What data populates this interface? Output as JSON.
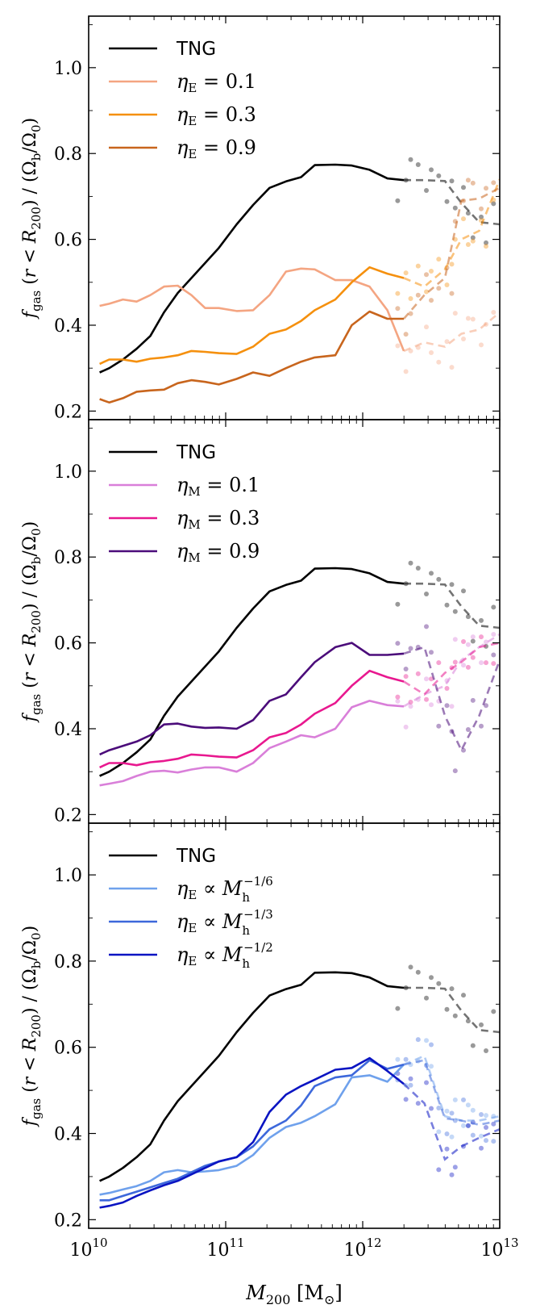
{
  "chart_data": [
    {
      "type": "line",
      "panel": "top",
      "ylabel": "f_gas (r < R_200) / (Ω_b/Ω_0)",
      "xlabel": "",
      "xscale": "log",
      "xlim": [
        10000000000.0,
        10000000000000.0
      ],
      "ylim": [
        0.18,
        1.12
      ],
      "yticks": [
        "0.2",
        "0.4",
        "0.6",
        "0.8",
        "1.0"
      ],
      "legend": [
        {
          "label": "TNG",
          "color": "#000000"
        },
        {
          "label": "η_E = 0.1",
          "color": "#f4a582"
        },
        {
          "label": "η_E = 0.3",
          "color": "#f5900e"
        },
        {
          "label": "η_E = 0.9",
          "color": "#c8651d"
        }
      ],
      "series": [
        {
          "name": "TNG",
          "color": "#000000",
          "x": [
            10.08,
            10.15,
            10.25,
            10.35,
            10.45,
            10.55,
            10.65,
            10.75,
            10.85,
            10.95,
            11.08,
            11.2,
            11.32,
            11.44,
            11.55,
            11.65,
            11.8,
            11.92,
            12.05,
            12.18,
            12.3
          ],
          "y": [
            0.29,
            0.3,
            0.32,
            0.345,
            0.375,
            0.43,
            0.475,
            0.51,
            0.545,
            0.58,
            0.635,
            0.68,
            0.72,
            0.735,
            0.745,
            0.773,
            0.774,
            0.772,
            0.762,
            0.742,
            0.738
          ],
          "dashed_x": [
            12.3,
            12.45,
            12.6,
            12.72,
            12.85,
            13.0
          ],
          "dashed_y": [
            0.738,
            0.738,
            0.736,
            0.685,
            0.64,
            0.635
          ]
        },
        {
          "name": "η_E = 0.1",
          "color": "#f4a582",
          "x": [
            10.08,
            10.15,
            10.25,
            10.35,
            10.45,
            10.55,
            10.65,
            10.75,
            10.85,
            10.95,
            11.08,
            11.2,
            11.32,
            11.44,
            11.55,
            11.65,
            11.8,
            11.92,
            12.05,
            12.18,
            12.3
          ],
          "y": [
            0.445,
            0.45,
            0.46,
            0.455,
            0.47,
            0.49,
            0.492,
            0.47,
            0.44,
            0.44,
            0.433,
            0.435,
            0.47,
            0.525,
            0.532,
            0.53,
            0.505,
            0.505,
            0.49,
            0.435,
            0.34
          ],
          "dashed_x": [
            12.3,
            12.45,
            12.6,
            12.72,
            12.85,
            13.0
          ],
          "dashed_y": [
            0.34,
            0.36,
            0.35,
            0.38,
            0.39,
            0.43
          ]
        },
        {
          "name": "η_E = 0.3",
          "color": "#f5900e",
          "x": [
            10.08,
            10.15,
            10.25,
            10.35,
            10.45,
            10.55,
            10.65,
            10.75,
            10.85,
            10.95,
            11.08,
            11.2,
            11.32,
            11.44,
            11.55,
            11.65,
            11.8,
            11.92,
            12.05,
            12.18,
            12.3
          ],
          "y": [
            0.31,
            0.32,
            0.32,
            0.315,
            0.322,
            0.325,
            0.33,
            0.34,
            0.338,
            0.335,
            0.333,
            0.35,
            0.38,
            0.39,
            0.41,
            0.435,
            0.46,
            0.5,
            0.535,
            0.52,
            0.51
          ],
          "dashed_x": [
            12.3,
            12.45,
            12.6,
            12.72,
            12.85,
            13.0
          ],
          "dashed_y": [
            0.51,
            0.49,
            0.53,
            0.6,
            0.62,
            0.74
          ]
        },
        {
          "name": "η_E = 0.9",
          "color": "#c8651d",
          "x": [
            10.08,
            10.15,
            10.25,
            10.35,
            10.45,
            10.55,
            10.65,
            10.75,
            10.85,
            10.95,
            11.08,
            11.2,
            11.32,
            11.44,
            11.55,
            11.65,
            11.8,
            11.92,
            12.05,
            12.18,
            12.3
          ],
          "y": [
            0.228,
            0.22,
            0.23,
            0.245,
            0.248,
            0.25,
            0.265,
            0.272,
            0.268,
            0.262,
            0.275,
            0.29,
            0.282,
            0.3,
            0.315,
            0.325,
            0.33,
            0.4,
            0.432,
            0.415,
            0.415
          ],
          "dashed_x": [
            12.3,
            12.45,
            12.6,
            12.72,
            12.85,
            13.0
          ],
          "dashed_y": [
            0.415,
            0.47,
            0.51,
            0.69,
            0.695,
            0.72
          ]
        }
      ]
    },
    {
      "type": "line",
      "panel": "middle",
      "ylabel": "f_gas (r < R_200) / (Ω_b/Ω_0)",
      "xlabel": "",
      "xscale": "log",
      "xlim": [
        10000000000.0,
        10000000000000.0
      ],
      "ylim": [
        0.18,
        1.12
      ],
      "yticks": [
        "0.2",
        "0.4",
        "0.6",
        "0.8",
        "1.0"
      ],
      "legend": [
        {
          "label": "TNG",
          "color": "#000000"
        },
        {
          "label": "η_M = 0.1",
          "color": "#d97fd9"
        },
        {
          "label": "η_M = 0.3",
          "color": "#e8188f"
        },
        {
          "label": "η_M = 0.9",
          "color": "#4b0c7a"
        }
      ],
      "series": [
        {
          "name": "TNG",
          "color": "#000000",
          "x": [
            10.08,
            10.15,
            10.25,
            10.35,
            10.45,
            10.55,
            10.65,
            10.75,
            10.85,
            10.95,
            11.08,
            11.2,
            11.32,
            11.44,
            11.55,
            11.65,
            11.8,
            11.92,
            12.05,
            12.18,
            12.3
          ],
          "y": [
            0.29,
            0.3,
            0.32,
            0.345,
            0.375,
            0.43,
            0.475,
            0.51,
            0.545,
            0.58,
            0.635,
            0.68,
            0.72,
            0.735,
            0.745,
            0.773,
            0.774,
            0.772,
            0.762,
            0.742,
            0.738
          ],
          "dashed_x": [
            12.3,
            12.45,
            12.6,
            12.72,
            12.85,
            13.0
          ],
          "dashed_y": [
            0.738,
            0.738,
            0.736,
            0.685,
            0.64,
            0.635
          ]
        },
        {
          "name": "η_M = 0.1",
          "color": "#d97fd9",
          "x": [
            10.08,
            10.15,
            10.25,
            10.35,
            10.45,
            10.55,
            10.65,
            10.75,
            10.85,
            10.95,
            11.08,
            11.2,
            11.32,
            11.44,
            11.55,
            11.65,
            11.8,
            11.92,
            12.05,
            12.18,
            12.3
          ],
          "y": [
            0.268,
            0.272,
            0.278,
            0.29,
            0.3,
            0.302,
            0.298,
            0.305,
            0.31,
            0.31,
            0.3,
            0.32,
            0.355,
            0.37,
            0.385,
            0.38,
            0.4,
            0.45,
            0.465,
            0.455,
            0.452
          ],
          "dashed_x": [
            12.3,
            12.45,
            12.6,
            12.72,
            12.85,
            13.0
          ],
          "dashed_y": [
            0.452,
            0.48,
            0.5,
            0.56,
            0.59,
            0.62
          ]
        },
        {
          "name": "η_M = 0.3",
          "color": "#e8188f",
          "x": [
            10.08,
            10.15,
            10.25,
            10.35,
            10.45,
            10.55,
            10.65,
            10.75,
            10.85,
            10.95,
            11.08,
            11.2,
            11.32,
            11.44,
            11.55,
            11.65,
            11.8,
            11.92,
            12.05,
            12.18,
            12.3
          ],
          "y": [
            0.31,
            0.32,
            0.32,
            0.315,
            0.322,
            0.325,
            0.33,
            0.34,
            0.338,
            0.335,
            0.333,
            0.35,
            0.38,
            0.39,
            0.41,
            0.435,
            0.46,
            0.5,
            0.535,
            0.52,
            0.51
          ],
          "dashed_x": [
            12.3,
            12.45,
            12.6,
            12.72,
            12.85,
            13.0
          ],
          "dashed_y": [
            0.51,
            0.48,
            0.53,
            0.555,
            0.59,
            0.6
          ]
        },
        {
          "name": "η_M = 0.9",
          "color": "#4b0c7a",
          "x": [
            10.08,
            10.15,
            10.25,
            10.35,
            10.45,
            10.55,
            10.65,
            10.75,
            10.85,
            10.95,
            11.08,
            11.2,
            11.32,
            11.44,
            11.55,
            11.65,
            11.8,
            11.92,
            12.05,
            12.18,
            12.3
          ],
          "y": [
            0.34,
            0.35,
            0.36,
            0.37,
            0.385,
            0.41,
            0.412,
            0.405,
            0.402,
            0.403,
            0.4,
            0.42,
            0.465,
            0.48,
            0.52,
            0.555,
            0.59,
            0.6,
            0.572,
            0.572,
            0.575
          ],
          "dashed_x": [
            12.3,
            12.45,
            12.6,
            12.72,
            12.85,
            13.0
          ],
          "dashed_y": [
            0.575,
            0.59,
            0.43,
            0.35,
            0.43,
            0.56
          ]
        }
      ]
    },
    {
      "type": "line",
      "panel": "bottom",
      "ylabel": "f_gas (r < R_200) / (Ω_b/Ω_0)",
      "xlabel": "M_200 [M_⊙]",
      "xscale": "log",
      "xlim": [
        10000000000.0,
        10000000000000.0
      ],
      "ylim": [
        0.18,
        1.12
      ],
      "xticks": [
        "10",
        "11",
        "12",
        "13"
      ],
      "yticks": [
        "0.2",
        "0.4",
        "0.6",
        "0.8",
        "1.0"
      ],
      "legend": [
        {
          "label": "TNG",
          "color": "#000000"
        },
        {
          "label": "η_E ∝ M_h^(−1/6)",
          "color": "#6fa1ec"
        },
        {
          "label": "η_E ∝ M_h^(−1/3)",
          "color": "#3d68db"
        },
        {
          "label": "η_E ∝ M_h^(−1/2)",
          "color": "#0a14c2"
        }
      ],
      "series": [
        {
          "name": "TNG",
          "color": "#000000",
          "x": [
            10.08,
            10.15,
            10.25,
            10.35,
            10.45,
            10.55,
            10.65,
            10.75,
            10.85,
            10.95,
            11.08,
            11.2,
            11.32,
            11.44,
            11.55,
            11.65,
            11.8,
            11.92,
            12.05,
            12.18,
            12.3
          ],
          "y": [
            0.29,
            0.3,
            0.32,
            0.345,
            0.375,
            0.43,
            0.475,
            0.51,
            0.545,
            0.58,
            0.635,
            0.68,
            0.72,
            0.735,
            0.745,
            0.773,
            0.774,
            0.772,
            0.762,
            0.742,
            0.738
          ],
          "dashed_x": [
            12.3,
            12.45,
            12.6,
            12.72,
            12.85,
            13.0
          ],
          "dashed_y": [
            0.738,
            0.738,
            0.736,
            0.685,
            0.64,
            0.635
          ]
        },
        {
          "name": "η_E ∝ M_h^(−1/6)",
          "color": "#6fa1ec",
          "x": [
            10.08,
            10.15,
            10.25,
            10.35,
            10.45,
            10.55,
            10.65,
            10.75,
            10.85,
            10.95,
            11.08,
            11.2,
            11.32,
            11.44,
            11.55,
            11.65,
            11.8,
            11.92,
            12.05,
            12.18,
            12.3
          ],
          "y": [
            0.258,
            0.262,
            0.27,
            0.278,
            0.29,
            0.31,
            0.315,
            0.31,
            0.312,
            0.315,
            0.325,
            0.35,
            0.39,
            0.415,
            0.425,
            0.44,
            0.468,
            0.53,
            0.535,
            0.52,
            0.56
          ],
          "dashed_x": [
            12.3,
            12.45,
            12.6,
            12.72,
            12.85,
            13.0
          ],
          "dashed_y": [
            0.56,
            0.58,
            0.44,
            0.43,
            0.43,
            0.44
          ]
        },
        {
          "name": "η_E ∝ M_h^(−1/3)",
          "color": "#3d68db",
          "x": [
            10.08,
            10.15,
            10.25,
            10.35,
            10.45,
            10.55,
            10.65,
            10.75,
            10.85,
            10.95,
            11.08,
            11.2,
            11.32,
            11.44,
            11.55,
            11.65,
            11.8,
            11.92,
            12.05,
            12.18,
            12.3
          ],
          "y": [
            0.245,
            0.245,
            0.255,
            0.265,
            0.275,
            0.285,
            0.295,
            0.31,
            0.325,
            0.335,
            0.345,
            0.37,
            0.41,
            0.43,
            0.465,
            0.51,
            0.53,
            0.535,
            0.57,
            0.55,
            0.56
          ],
          "dashed_x": [
            12.3,
            12.45,
            12.6,
            12.72,
            12.85,
            13.0
          ],
          "dashed_y": [
            0.56,
            0.57,
            0.435,
            0.43,
            0.42,
            0.43
          ]
        },
        {
          "name": "η_E ∝ M_h^(−1/2)",
          "color": "#0a14c2",
          "x": [
            10.08,
            10.15,
            10.25,
            10.35,
            10.45,
            10.55,
            10.65,
            10.75,
            10.85,
            10.95,
            11.08,
            11.2,
            11.32,
            11.44,
            11.55,
            11.65,
            11.8,
            11.92,
            12.05,
            12.18,
            12.3
          ],
          "y": [
            0.228,
            0.232,
            0.24,
            0.255,
            0.268,
            0.28,
            0.29,
            0.305,
            0.32,
            0.335,
            0.345,
            0.38,
            0.45,
            0.49,
            0.51,
            0.525,
            0.548,
            0.552,
            0.575,
            0.545,
            0.515
          ],
          "dashed_x": [
            12.3,
            12.45,
            12.6,
            12.72,
            12.85,
            13.0
          ],
          "dashed_y": [
            0.515,
            0.47,
            0.34,
            0.37,
            0.39,
            0.41
          ]
        }
      ]
    }
  ]
}
